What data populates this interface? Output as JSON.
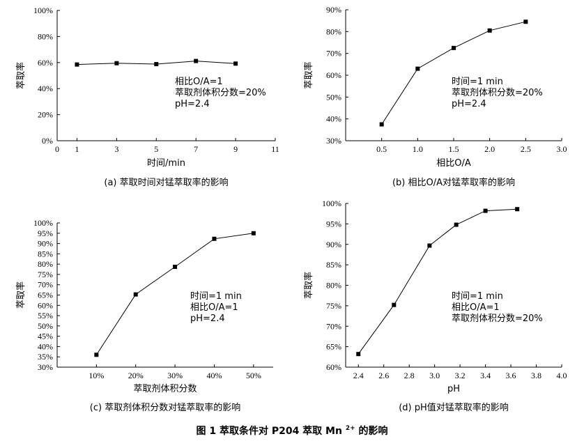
{
  "figure_caption": {
    "prefix": "图 1",
    "text": "萃取条件对 P204 萃取 Mn",
    "superscript": "2+",
    "suffix": "的影响"
  },
  "chart_data": [
    {
      "type": "line",
      "caption": "(a) 萃取时间对锰萃取率的影响",
      "xlabel": "时间/min",
      "ylabel": "萃取率",
      "xlim": [
        0,
        11
      ],
      "ylim": [
        0,
        100
      ],
      "xticks": [
        0,
        1,
        3,
        5,
        7,
        9,
        11
      ],
      "xtick_labels": [
        "0",
        "1",
        "3",
        "5",
        "7",
        "9",
        "11"
      ],
      "yticks": [
        0,
        20,
        40,
        60,
        80,
        100
      ],
      "ytick_labels": [
        "0%",
        "20%",
        "40%",
        "60%",
        "80%",
        "100%"
      ],
      "x": [
        1,
        3,
        5,
        7,
        9
      ],
      "y": [
        58.5,
        59.5,
        58.8,
        61.2,
        59.2
      ],
      "annotations": [
        "相比O/A=1",
        "萃取剂体积分数=20%",
        "pH=2.4"
      ]
    },
    {
      "type": "line",
      "caption": "(b) 相比O/A对锰萃取率的影响",
      "xlabel": "相比O/A",
      "ylabel": "萃取率",
      "xlim": [
        0,
        3.0
      ],
      "ylim": [
        30,
        90
      ],
      "xticks": [
        0.5,
        1.0,
        1.5,
        2.0,
        2.5,
        3.0
      ],
      "xtick_labels": [
        "0.5",
        "1.0",
        "1.5",
        "2.0",
        "2.5",
        "3.0"
      ],
      "yticks": [
        30,
        40,
        50,
        60,
        70,
        80,
        90
      ],
      "ytick_labels": [
        "30%",
        "40%",
        "50%",
        "60%",
        "70%",
        "80%",
        "90%"
      ],
      "x": [
        0.5,
        1.0,
        1.5,
        2.0,
        2.5
      ],
      "y": [
        37.5,
        63.0,
        72.5,
        80.5,
        84.5
      ],
      "annotations": [
        "时间=1 min",
        "萃取剂体积分数=20%",
        "pH=2.4"
      ]
    },
    {
      "type": "line",
      "caption": "(c) 萃取剂体积分数对锰萃取率的影响",
      "xlabel": "萃取剂体积分数",
      "ylabel": "萃取率",
      "xlim": [
        0,
        55
      ],
      "ylim": [
        30,
        100
      ],
      "xticks": [
        10,
        20,
        30,
        40,
        50
      ],
      "xtick_labels": [
        "10%",
        "20%",
        "30%",
        "40%",
        "50%"
      ],
      "yticks": [
        30,
        35,
        40,
        45,
        50,
        55,
        60,
        65,
        70,
        75,
        80,
        85,
        90,
        95,
        100
      ],
      "ytick_labels": [
        "30%",
        "35%",
        "40%",
        "45%",
        "50%",
        "55%",
        "60%",
        "65%",
        "70%",
        "75%",
        "80%",
        "85%",
        "90%",
        "95%",
        "100%"
      ],
      "x": [
        10,
        20,
        30,
        40,
        50
      ],
      "y": [
        36.0,
        65.3,
        78.7,
        92.3,
        95.0
      ],
      "annotations": [
        "时间=1 min",
        "相比O/A=1",
        "pH=2.4"
      ]
    },
    {
      "type": "line",
      "caption": "(d) pH值对锰萃取率的影响",
      "xlabel": "pH",
      "ylabel": "萃取率",
      "xlim": [
        2.3,
        4.0
      ],
      "ylim": [
        60,
        100
      ],
      "xticks": [
        2.4,
        2.6,
        2.8,
        3.0,
        3.2,
        3.4,
        3.6,
        3.8,
        4.0
      ],
      "xtick_labels": [
        "2.4",
        "2.6",
        "2.8",
        "3.0",
        "3.2",
        "3.4",
        "3.6",
        "3.8",
        "4.0"
      ],
      "yticks": [
        60,
        65,
        70,
        75,
        80,
        85,
        90,
        95,
        100
      ],
      "ytick_labels": [
        "60%",
        "65%",
        "70%",
        "75%",
        "80%",
        "85%",
        "90%",
        "95%",
        "100%"
      ],
      "x": [
        2.4,
        2.68,
        2.96,
        3.17,
        3.4,
        3.65
      ],
      "y": [
        63.2,
        75.2,
        89.7,
        94.8,
        98.2,
        98.6
      ],
      "annotations": [
        "时间=1 min",
        "相比O/A=1",
        "萃取剂体积分数=20%"
      ]
    }
  ]
}
